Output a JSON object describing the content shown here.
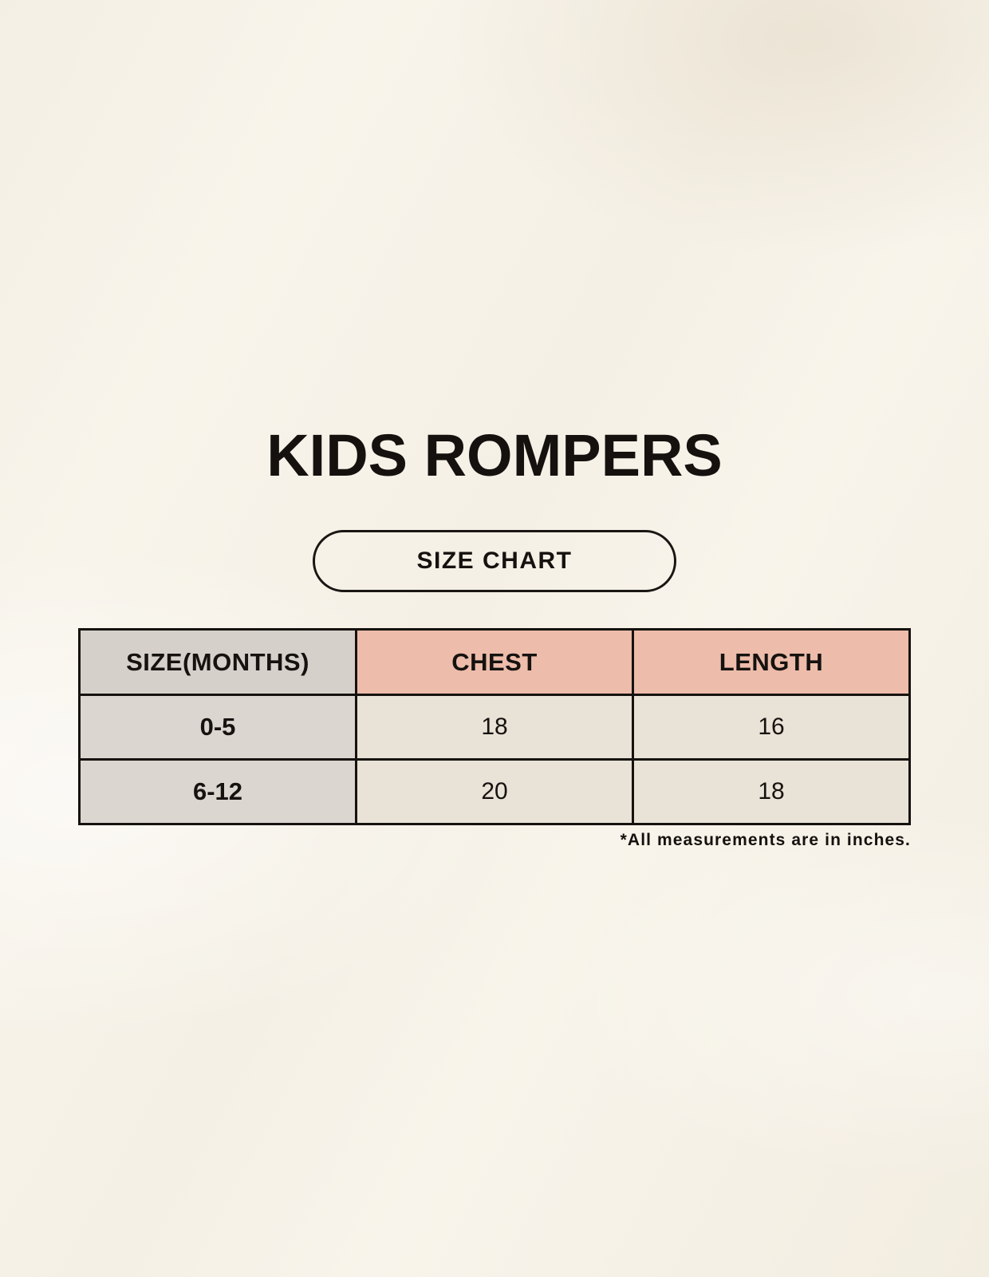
{
  "page": {
    "title": "KIDS ROMPERS",
    "size_chart_label": "SIZE CHART",
    "footnote": "*All measurements are in inches."
  },
  "table": {
    "headers": [
      "SIZE(MONTHS)",
      "CHEST",
      "LENGTH"
    ],
    "rows": [
      {
        "size": "0-5",
        "chest": "18",
        "length": "16"
      },
      {
        "size": "6-12",
        "chest": "20",
        "length": "18"
      }
    ]
  },
  "colors": {
    "background": "#f8f4eb",
    "header_neutral": "#d6d0ca",
    "header_accent": "#edbcab",
    "row_label_bg": "#dcd6d0",
    "row_value_bg": "#e9e2d7",
    "border": "#15120f",
    "text": "#14110e"
  }
}
